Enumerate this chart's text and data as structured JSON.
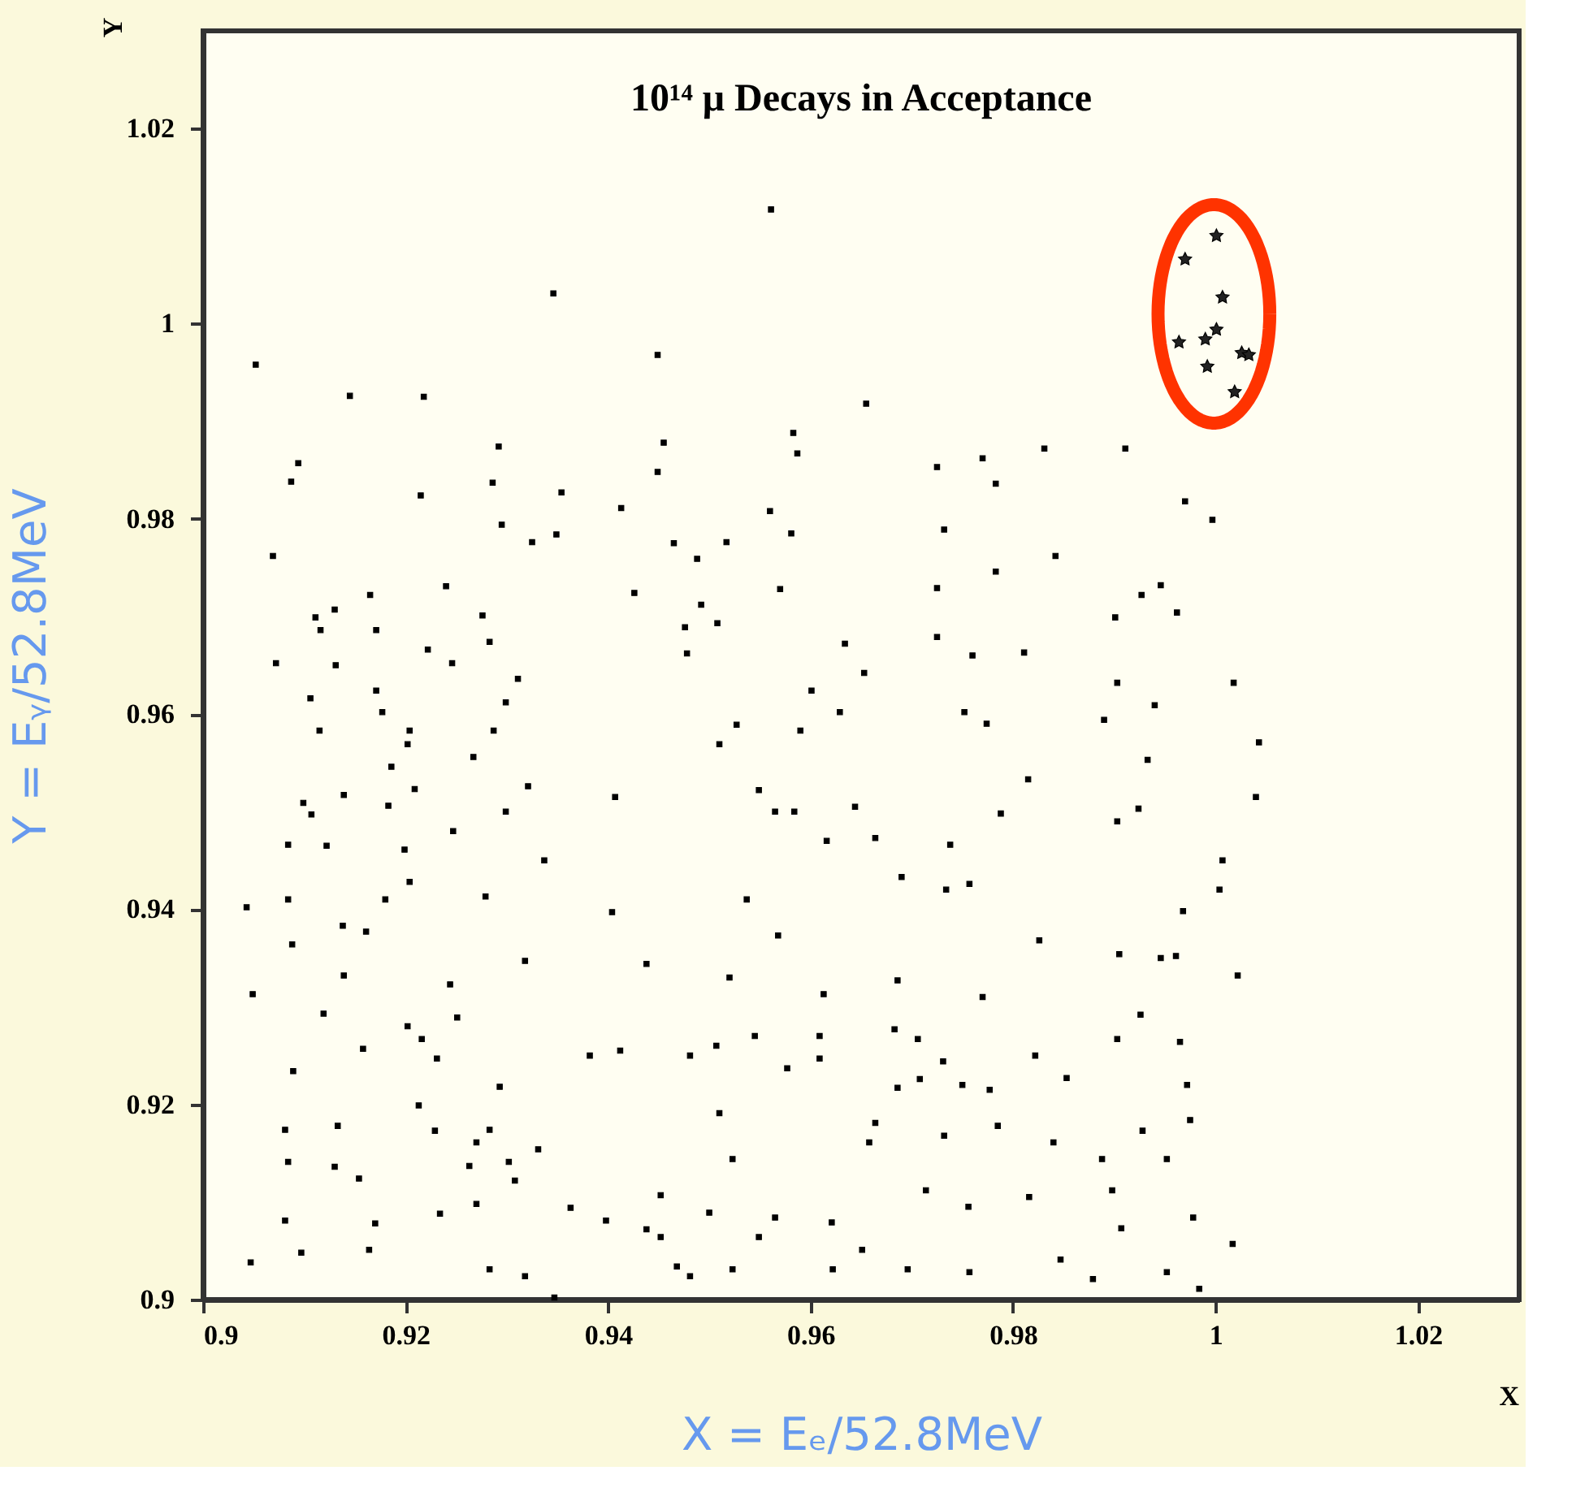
{
  "chart_data": {
    "type": "scatter",
    "title": "10¹⁴ μ Decays in Acceptance",
    "xlabel": "X = Eₑ/52.8MeV",
    "ylabel": "Y = Eᵧ/52.8MeV",
    "annotations": [
      "X",
      "Y"
    ],
    "xlim": [
      0.9,
      1.03
    ],
    "ylim": [
      0.9,
      1.03
    ],
    "xticks": [
      0.9,
      0.92,
      0.94,
      0.96,
      0.98,
      1,
      1.02
    ],
    "yticks": [
      0.9,
      0.92,
      0.94,
      0.96,
      0.98,
      1,
      1.02
    ],
    "grid": false,
    "series": [
      {
        "marker": "square",
        "color": "#000000",
        "x": [
          0.9346,
          0.9052,
          0.9218,
          0.9145,
          0.9292,
          0.9094,
          0.9087,
          0.9215,
          0.9286,
          0.9354,
          0.9413,
          0.9295,
          0.9325,
          0.9349,
          0.9069,
          0.924,
          0.9426,
          0.913,
          0.9111,
          0.9165,
          0.9276,
          0.9116,
          0.9171,
          0.9283,
          0.9222,
          0.9072,
          0.9131,
          0.9246,
          0.9311,
          0.9171,
          0.9106,
          0.9299,
          0.9177,
          0.9115,
          0.9204,
          0.9287,
          0.9202,
          0.9561,
          0.9449,
          0.9655,
          0.9583,
          0.9455,
          0.9587,
          0.9831,
          0.977,
          0.9449,
          0.9725,
          0.9783,
          0.956,
          0.9581,
          0.9465,
          0.9517,
          0.9488,
          0.9732,
          0.9842,
          0.9783,
          0.9725,
          0.957,
          0.9492,
          0.9508,
          0.9476,
          0.9478,
          0.9634,
          0.9653,
          0.9725,
          0.976,
          0.9811,
          0.9601,
          0.9629,
          0.9752,
          0.9774,
          0.959,
          0.951,
          0.9527,
          0.9911,
          0.997,
          0.9997,
          0.9946,
          0.9927,
          0.9901,
          0.9962,
          0.9903,
          1.0018,
          0.994,
          0.989,
          1.0043,
          0.9267,
          0.9186,
          0.9321,
          0.9209,
          0.9099,
          0.9139,
          0.9183,
          0.9299,
          0.9407,
          0.9107,
          0.9247,
          0.9084,
          0.9122,
          0.9199,
          0.9337,
          0.9204,
          0.9084,
          0.918,
          0.9279,
          0.9404,
          0.9043,
          0.9138,
          0.9161,
          0.9088,
          0.9318,
          0.9139,
          0.9049,
          0.9244,
          0.9119,
          0.9202,
          0.9216,
          0.9251,
          0.9412,
          0.9382,
          0.9231,
          0.9158,
          0.9089,
          0.9293,
          0.9213,
          0.9081,
          0.9133,
          0.9229,
          0.9283,
          0.927,
          0.9331,
          0.9302,
          0.9263,
          0.9308,
          0.913,
          0.9154,
          0.9084,
          0.9081,
          0.917,
          0.9234,
          0.927,
          0.9363,
          0.9398,
          0.9097,
          0.9164,
          0.9283,
          0.9318,
          0.9047,
          0.9347,
          0.9565,
          0.9584,
          0.9616,
          0.9664,
          0.9738,
          0.9815,
          0.9788,
          0.9549,
          0.9644,
          0.969,
          0.9734,
          0.9757,
          0.9537,
          0.9568,
          0.9826,
          0.952,
          0.9613,
          0.9686,
          0.977,
          0.9438,
          0.9683,
          0.9706,
          0.9609,
          0.9545,
          0.9507,
          0.9481,
          0.9577,
          0.9609,
          0.9731,
          0.9822,
          0.9853,
          0.9708,
          0.9686,
          0.975,
          0.9777,
          0.951,
          0.9664,
          0.9785,
          0.9732,
          0.984,
          0.9658,
          0.9523,
          0.9452,
          0.9714,
          0.95,
          0.9565,
          0.9621,
          0.9756,
          0.9816,
          0.9452,
          0.9549,
          0.9651,
          0.9468,
          0.9481,
          0.9523,
          0.9622,
          0.9696,
          0.9757,
          0.9847,
          0.9438,
          0.9933,
          0.9924,
          1.004,
          0.9903,
          1.0007,
          1.0004,
          0.9968,
          0.9905,
          0.9946,
          0.9961,
          1.0022,
          0.9926,
          0.9903,
          0.9965,
          0.9972,
          0.9975,
          0.9928,
          0.9888,
          0.9952,
          0.9898,
          0.9978,
          0.9907,
          1.0017,
          0.9879,
          0.9952,
          0.9984
        ],
        "values": [
          1.0031,
          0.9958,
          0.9925,
          0.9926,
          0.9874,
          0.9857,
          0.9838,
          0.9824,
          0.9837,
          0.9827,
          0.9811,
          0.9794,
          0.9776,
          0.9784,
          0.9762,
          0.9731,
          0.9724,
          0.9707,
          0.9699,
          0.9722,
          0.9701,
          0.9686,
          0.9686,
          0.9674,
          0.9666,
          0.9652,
          0.965,
          0.9652,
          0.9636,
          0.9624,
          0.9616,
          0.9612,
          0.9602,
          0.9583,
          0.9583,
          0.9583,
          0.9569,
          1.0117,
          0.9968,
          0.9918,
          0.9888,
          0.9878,
          0.9867,
          0.9872,
          0.9862,
          0.9848,
          0.9853,
          0.9836,
          0.9808,
          0.9785,
          0.9775,
          0.9776,
          0.9759,
          0.9789,
          0.9762,
          0.9746,
          0.9729,
          0.9728,
          0.9712,
          0.9693,
          0.9689,
          0.9662,
          0.9672,
          0.9642,
          0.9679,
          0.966,
          0.9663,
          0.9624,
          0.9602,
          0.9602,
          0.959,
          0.9583,
          0.9569,
          0.9589,
          0.9872,
          0.9818,
          0.9799,
          0.9732,
          0.9722,
          0.9699,
          0.9704,
          0.9632,
          0.9632,
          0.9609,
          0.9594,
          0.9571,
          0.9556,
          0.9546,
          0.9526,
          0.9523,
          0.9509,
          0.9517,
          0.9506,
          0.95,
          0.9515,
          0.9497,
          0.948,
          0.9466,
          0.9465,
          0.9461,
          0.945,
          0.9428,
          0.941,
          0.941,
          0.9413,
          0.9397,
          0.9402,
          0.9383,
          0.9377,
          0.9364,
          0.9347,
          0.9332,
          0.9313,
          0.9323,
          0.9293,
          0.928,
          0.9267,
          0.9289,
          0.9255,
          0.925,
          0.9247,
          0.9257,
          0.9234,
          0.9218,
          0.9199,
          0.9174,
          0.9178,
          0.9173,
          0.9174,
          0.9161,
          0.9154,
          0.9141,
          0.9137,
          0.9122,
          0.9136,
          0.9124,
          0.9141,
          0.9081,
          0.9078,
          0.9088,
          0.9098,
          0.9094,
          0.9081,
          0.9048,
          0.9051,
          0.9031,
          0.9024,
          0.9038,
          0.9002,
          0.95,
          0.95,
          0.947,
          0.9473,
          0.9466,
          0.9533,
          0.9498,
          0.9522,
          0.9505,
          0.9433,
          0.942,
          0.9426,
          0.941,
          0.9373,
          0.9368,
          0.933,
          0.9313,
          0.9327,
          0.931,
          0.9344,
          0.9277,
          0.9267,
          0.927,
          0.927,
          0.926,
          0.925,
          0.9237,
          0.9247,
          0.9244,
          0.925,
          0.9227,
          0.9226,
          0.9217,
          0.922,
          0.9215,
          0.9191,
          0.9181,
          0.9178,
          0.9168,
          0.9161,
          0.9161,
          0.9144,
          0.9107,
          0.9112,
          0.9089,
          0.9084,
          0.9079,
          0.9095,
          0.9105,
          0.9064,
          0.9064,
          0.9051,
          0.9034,
          0.9024,
          0.9031,
          0.9031,
          0.9031,
          0.9028,
          0.9041,
          0.9072,
          0.9553,
          0.9503,
          0.9515,
          0.949,
          0.945,
          0.942,
          0.9398,
          0.9354,
          0.935,
          0.9352,
          0.9332,
          0.9292,
          0.9267,
          0.9264,
          0.922,
          0.9184,
          0.9173,
          0.9144,
          0.9144,
          0.9112,
          0.9084,
          0.9073,
          0.9057,
          0.9021,
          0.9028,
          0.9011
        ]
      },
      {
        "marker": "star",
        "color": "#222222",
        "x": [
          1.0001,
          0.997,
          1.0007,
          1.0001,
          0.9964,
          0.999,
          0.9992,
          1.0026,
          1.0033,
          1.0019
        ],
        "values": [
          1.009,
          1.0066,
          1.0027,
          0.9994,
          0.9981,
          0.9984,
          0.9956,
          0.997,
          0.9968,
          0.993
        ]
      }
    ]
  }
}
